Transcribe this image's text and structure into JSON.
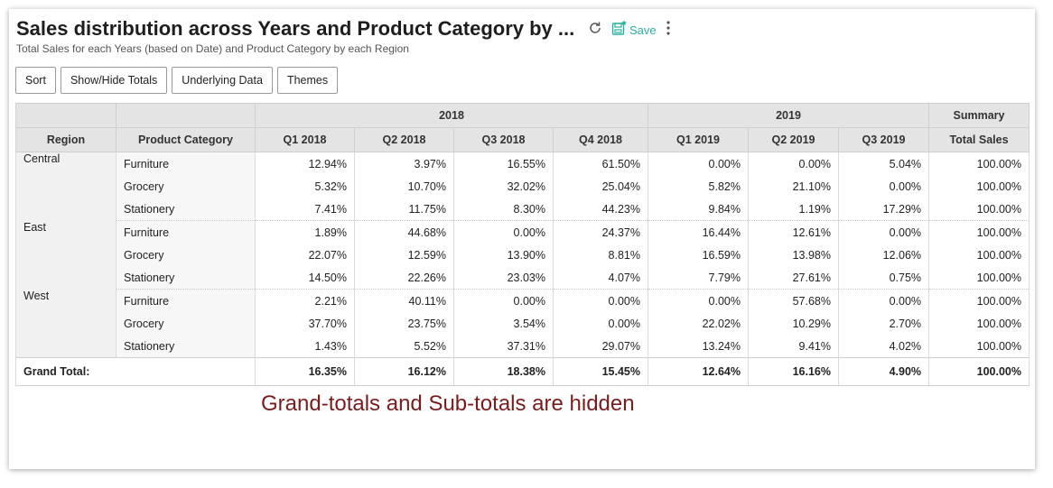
{
  "report": {
    "title": "Sales distribution across Years and Product Category by ...",
    "subtitle": "Total Sales for each Years (based on Date) and Product Category by each Region",
    "save_label": "Save"
  },
  "toolbar": {
    "sort": "Sort",
    "show_hide_totals": "Show/Hide Totals",
    "underlying_data": "Underlying Data",
    "themes": "Themes"
  },
  "table": {
    "year_2018": "2018",
    "year_2019": "2019",
    "summary": "Summary",
    "col_region": "Region",
    "col_category": "Product Category",
    "quarters": [
      "Q1 2018",
      "Q2 2018",
      "Q3 2018",
      "Q4 2018",
      "Q1 2019",
      "Q2 2019",
      "Q3 2019"
    ],
    "col_total": "Total Sales",
    "regions": [
      {
        "name": "Central",
        "rows": [
          {
            "category": "Furniture",
            "values": [
              "12.94%",
              "3.97%",
              "16.55%",
              "61.50%",
              "0.00%",
              "0.00%",
              "5.04%"
            ],
            "total": "100.00%"
          },
          {
            "category": "Grocery",
            "values": [
              "5.32%",
              "10.70%",
              "32.02%",
              "25.04%",
              "5.82%",
              "21.10%",
              "0.00%"
            ],
            "total": "100.00%"
          },
          {
            "category": "Stationery",
            "values": [
              "7.41%",
              "11.75%",
              "8.30%",
              "44.23%",
              "9.84%",
              "1.19%",
              "17.29%"
            ],
            "total": "100.00%"
          }
        ]
      },
      {
        "name": "East",
        "rows": [
          {
            "category": "Furniture",
            "values": [
              "1.89%",
              "44.68%",
              "0.00%",
              "24.37%",
              "16.44%",
              "12.61%",
              "0.00%"
            ],
            "total": "100.00%"
          },
          {
            "category": "Grocery",
            "values": [
              "22.07%",
              "12.59%",
              "13.90%",
              "8.81%",
              "16.59%",
              "13.98%",
              "12.06%"
            ],
            "total": "100.00%"
          },
          {
            "category": "Stationery",
            "values": [
              "14.50%",
              "22.26%",
              "23.03%",
              "4.07%",
              "7.79%",
              "27.61%",
              "0.75%"
            ],
            "total": "100.00%"
          }
        ]
      },
      {
        "name": "West",
        "rows": [
          {
            "category": "Furniture",
            "values": [
              "2.21%",
              "40.11%",
              "0.00%",
              "0.00%",
              "0.00%",
              "57.68%",
              "0.00%"
            ],
            "total": "100.00%"
          },
          {
            "category": "Grocery",
            "values": [
              "37.70%",
              "23.75%",
              "3.54%",
              "0.00%",
              "22.02%",
              "10.29%",
              "2.70%"
            ],
            "total": "100.00%"
          },
          {
            "category": "Stationery",
            "values": [
              "1.43%",
              "5.52%",
              "37.31%",
              "29.07%",
              "13.24%",
              "9.41%",
              "4.02%"
            ],
            "total": "100.00%"
          }
        ]
      }
    ],
    "grand_total": {
      "label": "Grand Total:",
      "values": [
        "16.35%",
        "16.12%",
        "18.38%",
        "15.45%",
        "12.64%",
        "16.16%",
        "4.90%"
      ],
      "total": "100.00%"
    }
  },
  "annotation": "Grand-totals and Sub-totals are hidden"
}
